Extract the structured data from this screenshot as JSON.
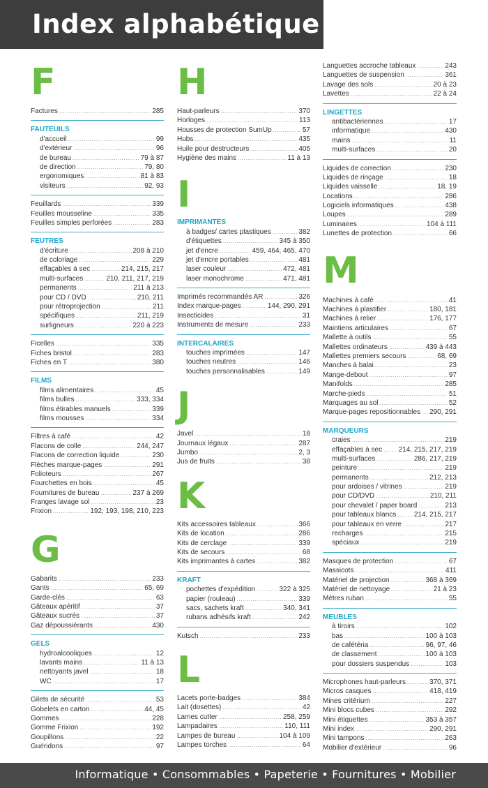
{
  "header": {
    "title": "Index alphabétique"
  },
  "footer": {
    "tagline": "Informatique • Consommables • Papeterie • Fournitures • Mobilier"
  },
  "colors": {
    "letter": "#6cbd45",
    "category": "#1fa5c8",
    "separator": "#3aaac8",
    "bar": "#3d3d3d"
  },
  "col1": {
    "F": {
      "letter": "F",
      "g1": [
        {
          "l": "Factures",
          "p": "285"
        }
      ],
      "fauteuils": {
        "cat": "FAUTEUILS",
        "items": [
          {
            "l": "d'accueil",
            "p": "99"
          },
          {
            "l": "d'extérieur",
            "p": "96"
          },
          {
            "l": "de bureau",
            "p": "79 à 87"
          },
          {
            "l": "de direction",
            "p": "79, 80"
          },
          {
            "l": "ergonomiques",
            "p": "81 à 83"
          },
          {
            "l": "visiteurs",
            "p": "92, 93"
          }
        ]
      },
      "g2": [
        {
          "l": "Feuillards",
          "p": "339"
        },
        {
          "l": "Feuilles mousseline",
          "p": "335"
        },
        {
          "l": "Feuilles simples perforées",
          "p": "283"
        }
      ],
      "feutres": {
        "cat": "FEUTRES",
        "items": [
          {
            "l": "d'écriture",
            "p": "208 à 210"
          },
          {
            "l": "de coloriage",
            "p": "229"
          },
          {
            "l": "effaçables à sec",
            "p": "214, 215, 217"
          },
          {
            "l": "multi-surfaces",
            "p": "210, 211, 217, 219"
          },
          {
            "l": "permanents",
            "p": "211 à 213"
          },
          {
            "l": "pour CD / DVD",
            "p": "210, 211"
          },
          {
            "l": "pour rétroprojection",
            "p": "211"
          },
          {
            "l": "spécifiques",
            "p": "211, 219"
          },
          {
            "l": "surligneurs",
            "p": "220 à 223"
          }
        ]
      },
      "g3": [
        {
          "l": "Ficelles",
          "p": "335"
        },
        {
          "l": "Fiches bristol",
          "p": "283"
        },
        {
          "l": "Fiches en T",
          "p": "380"
        }
      ],
      "films": {
        "cat": "FILMS",
        "items": [
          {
            "l": "films alimentaires",
            "p": "45"
          },
          {
            "l": "films bulles",
            "p": "333, 334"
          },
          {
            "l": "films étirables manuels",
            "p": "339"
          },
          {
            "l": "films mousses",
            "p": "334"
          }
        ]
      },
      "g4": [
        {
          "l": "Filtres à café",
          "p": "42"
        },
        {
          "l": "Flacons de colle",
          "p": "244, 247"
        },
        {
          "l": "Flacons de correction liquide",
          "p": "230"
        },
        {
          "l": "Flèches marque-pages",
          "p": "291"
        },
        {
          "l": "Folioteurs",
          "p": "267"
        },
        {
          "l": "Fourchettes en bois",
          "p": "45"
        },
        {
          "l": "Fournitures de bureau",
          "p": "237 à 269"
        },
        {
          "l": "Franges lavage sol",
          "p": "23"
        },
        {
          "l": "Frixion",
          "p": "192, 193, 198, 210, 223"
        }
      ]
    },
    "G": {
      "letter": "G",
      "g1": [
        {
          "l": "Gabarits",
          "p": "233"
        },
        {
          "l": "Gants",
          "p": "65, 69"
        },
        {
          "l": "Garde-clés",
          "p": "63"
        },
        {
          "l": "Gâteaux apéritif",
          "p": "37"
        },
        {
          "l": "Gâteaux sucrés",
          "p": "37"
        },
        {
          "l": "Gaz dépoussiérants",
          "p": "430"
        }
      ],
      "gels": {
        "cat": "GELS",
        "items": [
          {
            "l": "hydroalcooliques",
            "p": "12"
          },
          {
            "l": "lavants mains",
            "p": "11 à 13"
          },
          {
            "l": "nettoyants javel",
            "p": "18"
          },
          {
            "l": "WC",
            "p": "17"
          }
        ]
      },
      "g2": [
        {
          "l": "Gilets de sécurité",
          "p": "53"
        },
        {
          "l": "Gobelets en carton",
          "p": "44, 45"
        },
        {
          "l": "Gommes",
          "p": "228"
        },
        {
          "l": "Gomme Frixion",
          "p": "192"
        },
        {
          "l": "Goupillons",
          "p": "22"
        },
        {
          "l": "Guéridons",
          "p": "97"
        }
      ]
    }
  },
  "col2": {
    "H": {
      "letter": "H",
      "g1": [
        {
          "l": "Haut-parleurs",
          "p": "370"
        },
        {
          "l": "Horloges",
          "p": "113"
        },
        {
          "l": "Housses de protection SumUp",
          "p": "57"
        },
        {
          "l": "Hubs",
          "p": "435"
        },
        {
          "l": "Huile pour destructeurs",
          "p": "405"
        },
        {
          "l": "Hygiène des mains",
          "p": "11 à 13"
        }
      ]
    },
    "I": {
      "letter": "I",
      "imprimantes": {
        "cat": "IMPRIMANTES",
        "items": [
          {
            "l": "à badges/ cartes plastiques",
            "p": "382"
          },
          {
            "l": "d'étiquettes",
            "p": "345 à 350"
          },
          {
            "l": "jet d'encre",
            "p": "459, 464, 465, 470"
          },
          {
            "l": "jet d'encre portables",
            "p": "481"
          },
          {
            "l": "laser couleur",
            "p": "472, 481"
          },
          {
            "l": "laser monochrome",
            "p": "471, 481"
          }
        ]
      },
      "g1": [
        {
          "l": "Imprimés recommandés AR",
          "p": "326"
        },
        {
          "l": "Index marque-pages",
          "p": "144, 290, 291"
        },
        {
          "l": "Insecticides",
          "p": "31"
        },
        {
          "l": "Instruments de mesure",
          "p": "233"
        }
      ],
      "intercalaires": {
        "cat": "INTERCALAIRES",
        "items": [
          {
            "l": "touches imprimées",
            "p": "147"
          },
          {
            "l": "touches neutres",
            "p": "146"
          },
          {
            "l": "touches personnalisables",
            "p": "149"
          }
        ]
      }
    },
    "J": {
      "letter": "J",
      "g1": [
        {
          "l": "Javel",
          "p": "18"
        },
        {
          "l": "Journaux légaux",
          "p": "287"
        },
        {
          "l": "Jumbo",
          "p": "2, 3"
        },
        {
          "l": "Jus de fruits",
          "p": "38"
        }
      ]
    },
    "K": {
      "letter": "K",
      "g1": [
        {
          "l": "Kits accessoires tableaux",
          "p": "366"
        },
        {
          "l": "Kits de location",
          "p": "286"
        },
        {
          "l": "Kits de cerclage",
          "p": "339"
        },
        {
          "l": "Kits de secours",
          "p": "68"
        },
        {
          "l": "Kits imprimantes à cartes",
          "p": "382"
        }
      ],
      "kraft": {
        "cat": "KRAFT",
        "items": [
          {
            "l": "pochettes d'expédition",
            "p": "322 à 325"
          },
          {
            "l": "papier (rouleau)",
            "p": "339"
          },
          {
            "l": "sacs, sachets kraft",
            "p": "340, 341"
          },
          {
            "l": "rubans adhésifs kraft",
            "p": "242"
          }
        ]
      },
      "g2": [
        {
          "l": "Kutsch",
          "p": "233"
        }
      ]
    },
    "L": {
      "letter": "L",
      "g1": [
        {
          "l": "Lacets porte-badges",
          "p": "384"
        },
        {
          "l": "Lait (dosettes)",
          "p": "42"
        },
        {
          "l": "Lames cutter",
          "p": "258, 259"
        },
        {
          "l": "Lampadaires",
          "p": "110, 111"
        },
        {
          "l": "Lampes de bureau",
          "p": "104 à 109"
        },
        {
          "l": "Lampes torches",
          "p": "64"
        }
      ]
    }
  },
  "col3": {
    "Lcont": {
      "g1": [
        {
          "l": "Languettes accroche tableaux",
          "p": "243"
        },
        {
          "l": "Languettes de suspension",
          "p": "361"
        },
        {
          "l": "Lavage des sols",
          "p": "20 à 23"
        },
        {
          "l": "Lavettes",
          "p": "22 à 24"
        }
      ],
      "lingettes": {
        "cat": "LINGETTES",
        "items": [
          {
            "l": "antibactériennes",
            "p": "17"
          },
          {
            "l": "informatique",
            "p": "430"
          },
          {
            "l": "mains",
            "p": "11"
          },
          {
            "l": "multi-surfaces",
            "p": "20"
          }
        ]
      },
      "g2": [
        {
          "l": "Liquides de correction",
          "p": "230"
        },
        {
          "l": "Liquides de rinçage",
          "p": "18"
        },
        {
          "l": "Liquides vaisselle",
          "p": "18, 19"
        },
        {
          "l": "Locations",
          "p": "286"
        },
        {
          "l": "Logiciels informatiques",
          "p": "438"
        },
        {
          "l": "Loupes",
          "p": "289"
        },
        {
          "l": "Luminaires",
          "p": "104 à 111"
        },
        {
          "l": "Lunettes de protection",
          "p": "66"
        }
      ]
    },
    "M": {
      "letter": "M",
      "g1": [
        {
          "l": "Machines à café",
          "p": "41"
        },
        {
          "l": "Machines à plastifier",
          "p": "180, 181"
        },
        {
          "l": "Machines à relier",
          "p": "176, 177"
        },
        {
          "l": "Maintiens articulaires",
          "p": "67"
        },
        {
          "l": "Mallette à outils",
          "p": "55"
        },
        {
          "l": "Mallettes ordinateurs",
          "p": "439 à 443"
        },
        {
          "l": "Mallettes premiers secours",
          "p": "68, 69"
        },
        {
          "l": "Manches à balai",
          "p": "23"
        },
        {
          "l": "Mange-debout",
          "p": "97"
        },
        {
          "l": "Manifolds",
          "p": "285"
        },
        {
          "l": "Marche-pieds",
          "p": "51"
        },
        {
          "l": "Marquages au sol",
          "p": "52"
        },
        {
          "l": "Marque-pages repositionnables",
          "p": "290, 291"
        }
      ],
      "marqueurs": {
        "cat": "MARQUEURS",
        "items": [
          {
            "l": "craies",
            "p": "219"
          },
          {
            "l": "effaçables à sec",
            "p": "214, 215, 217, 219"
          },
          {
            "l": "multi-surfaces",
            "p": "286, 217, 219"
          },
          {
            "l": "peinture",
            "p": "219"
          },
          {
            "l": "permanents",
            "p": "212, 213"
          },
          {
            "l": "pour ardoises / vitrines",
            "p": "219"
          },
          {
            "l": "pour CD/DVD",
            "p": "210, 211"
          },
          {
            "l": "pour chevalet / paper board",
            "p": "213"
          },
          {
            "l": "pour tableaux blancs",
            "p": "214, 215, 217"
          },
          {
            "l": "pour tableaux en verre",
            "p": "217"
          },
          {
            "l": "recharges",
            "p": "215"
          },
          {
            "l": "spéciaux",
            "p": "219"
          }
        ]
      },
      "g2": [
        {
          "l": "Masques de protection",
          "p": "67"
        },
        {
          "l": "Massicots",
          "p": "411"
        },
        {
          "l": "Matériel de projection",
          "p": "368 à 369"
        },
        {
          "l": "Matériel de nettoyage",
          "p": "21 à 23"
        },
        {
          "l": "Mètres ruban",
          "p": "55"
        }
      ],
      "meubles": {
        "cat": "MEUBLES",
        "items": [
          {
            "l": "à tiroirs",
            "p": "102"
          },
          {
            "l": "bas",
            "p": "100 à 103"
          },
          {
            "l": "de cafétéria",
            "p": "96, 97, 46"
          },
          {
            "l": "de classement",
            "p": "100 à 103"
          },
          {
            "l": "pour dossiers suspendus",
            "p": "103"
          }
        ]
      },
      "g3": [
        {
          "l": "Microphones haut-parleurs",
          "p": "370, 371"
        },
        {
          "l": "Micros casques",
          "p": "418, 419"
        },
        {
          "l": "Mines critérium",
          "p": "227"
        },
        {
          "l": "Mini blocs cubes",
          "p": "292"
        },
        {
          "l": "Mini étiquettes",
          "p": "353 à 357"
        },
        {
          "l": "Mini index",
          "p": "290, 291"
        },
        {
          "l": "Mini tampons",
          "p": "263"
        },
        {
          "l": "Mobilier d'extérieur",
          "p": "96"
        }
      ]
    }
  }
}
